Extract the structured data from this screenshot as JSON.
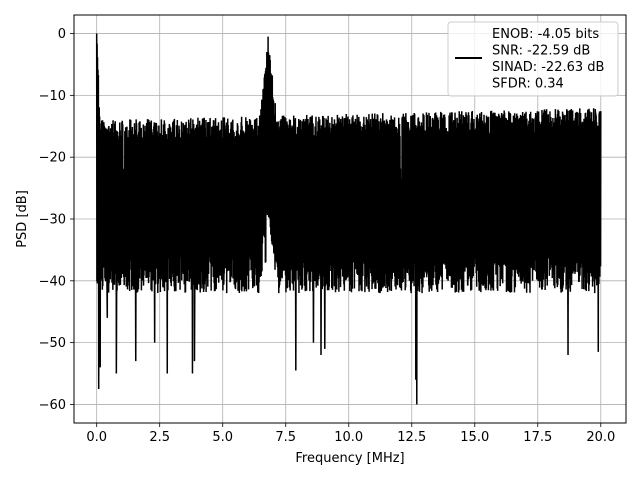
{
  "chart_data": {
    "type": "line",
    "title": "",
    "xlabel": "Frequency [MHz]",
    "ylabel": "PSD [dB]",
    "xlim": [
      -0.9,
      21.0
    ],
    "ylim": [
      -63.0,
      3.0
    ],
    "xticks": [
      0.0,
      2.5,
      5.0,
      7.5,
      10.0,
      12.5,
      15.0,
      17.5,
      20.0
    ],
    "xtick_labels": [
      "0.0",
      "2.5",
      "5.0",
      "7.5",
      "10.0",
      "12.5",
      "15.0",
      "17.5",
      "20.0"
    ],
    "yticks": [
      0,
      -10,
      -20,
      -30,
      -40,
      -50,
      -60
    ],
    "ytick_labels": [
      "0",
      "−10",
      "−20",
      "−30",
      "−40",
      "−50",
      "−60"
    ],
    "grid": true,
    "legend_position": "top-right",
    "legend_entries": [
      "ENOB: -4.05 bits",
      "SNR: -22.59 dB",
      "SINAD: -22.63 dB",
      "SFDR: 0.34"
    ],
    "series": [
      {
        "color": "#000000",
        "x_range": [
          0.0,
          20.0
        ],
        "noise_ceiling_db": [
          -14,
          -12
        ],
        "noise_floor_db": [
          -36,
          -42
        ],
        "dc_peak": {
          "x": 0.0,
          "y": 0.0
        },
        "signal_peak": {
          "x": 6.8,
          "y": -0.5
        },
        "spurs": [
          {
            "x": 0.08,
            "y": -57.5
          },
          {
            "x": 0.14,
            "y": -54
          },
          {
            "x": 0.42,
            "y": -46
          },
          {
            "x": 0.78,
            "y": -55
          },
          {
            "x": 1.55,
            "y": -53
          },
          {
            "x": 2.3,
            "y": -50
          },
          {
            "x": 2.8,
            "y": -55
          },
          {
            "x": 3.8,
            "y": -55
          },
          {
            "x": 3.88,
            "y": -53
          },
          {
            "x": 7.9,
            "y": -54.5
          },
          {
            "x": 8.6,
            "y": -50
          },
          {
            "x": 8.9,
            "y": -52
          },
          {
            "x": 9.05,
            "y": -51
          },
          {
            "x": 12.7,
            "y": -60
          },
          {
            "x": 12.66,
            "y": -56
          },
          {
            "x": 18.7,
            "y": -52
          },
          {
            "x": 19.9,
            "y": -51.5
          }
        ]
      }
    ]
  }
}
